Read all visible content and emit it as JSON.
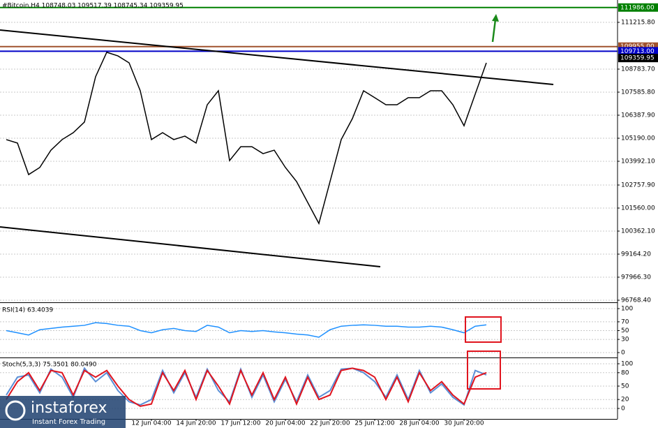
{
  "chart_data": [
    {
      "type": "line",
      "title": "#Bitcoin,H4  108748.03 109517.39 108745.34 109359.95",
      "series": [
        {
          "name": "Bitcoin",
          "color": "#000000",
          "values": [
            105120,
            104940,
            103300,
            103670,
            104570,
            105120,
            105480,
            106030,
            108390,
            109660,
            109470,
            109110,
            107660,
            105120,
            105480,
            105120,
            105300,
            104940,
            106930,
            107660,
            104030,
            104750,
            104750,
            104390,
            104570,
            103670,
            102940,
            101850,
            100760,
            102940,
            105120,
            106210,
            107660,
            107300,
            106930,
            106930,
            107300,
            107300,
            107660,
            107660,
            106930,
            105840,
            107480,
            109110
          ]
        }
      ],
      "ylim": [
        96695.8,
        112377
      ],
      "yticks": [
        {
          "value": 111215.8,
          "label": "111215.80"
        },
        {
          "value": 108783.7,
          "label": "108783.70"
        },
        {
          "value": 107585.8,
          "label": "107585.80"
        },
        {
          "value": 106387.9,
          "label": "106387.90"
        },
        {
          "value": 105190,
          "label": "105190.00"
        },
        {
          "value": 103992.1,
          "label": "103992.10"
        },
        {
          "value": 102757.9,
          "label": "102757.90"
        },
        {
          "value": 101560,
          "label": "101560.00"
        },
        {
          "value": 100362.1,
          "label": "100362.10"
        },
        {
          "value": 99164.2,
          "label": "99164.20"
        },
        {
          "value": 97966.3,
          "label": "97966.30"
        },
        {
          "value": 96768.4,
          "label": "96768.40"
        }
      ],
      "levels": [
        {
          "value": 111986,
          "label": "111986.00",
          "color": "#008000"
        },
        {
          "value": 109955,
          "label": "109955.00",
          "color": "#a0522d"
        },
        {
          "value": 109713,
          "label": "109713.00",
          "color": "#0000c8"
        },
        {
          "value": 109359.95,
          "label": "109359.95",
          "color": "#000000"
        }
      ],
      "grid": true
    },
    {
      "type": "line",
      "title": "RSI(14) 63.4039",
      "series": [
        {
          "name": "RSI",
          "color": "#1e90ff",
          "values": [
            50,
            45,
            40,
            52,
            55,
            58,
            60,
            62,
            68,
            66,
            62,
            60,
            50,
            45,
            52,
            55,
            50,
            48,
            62,
            58,
            45,
            50,
            48,
            50,
            47,
            45,
            42,
            40,
            35,
            52,
            60,
            62,
            63,
            62,
            60,
            60,
            58,
            58,
            60,
            58,
            52,
            45,
            60,
            63
          ]
        }
      ],
      "ylim": [
        -9.5,
        109.5
      ],
      "yticks": [
        100,
        70,
        50,
        30,
        0
      ],
      "grid": true
    },
    {
      "type": "line",
      "title": "Stoch(5,3,3) 75.3501 80.0490",
      "categories": [
        null,
        null,
        null,
        null,
        null,
        null,
        null,
        null,
        null,
        null,
        null,
        null,
        null,
        "12 Jun 04:00",
        null,
        null,
        null,
        "14 Jun 20:00",
        null,
        null,
        null,
        "17 Jun 12:00",
        null,
        null,
        null,
        "20 Jun 04:00",
        null,
        null,
        null,
        "22 Jun 20:00",
        null,
        null,
        null,
        "25 Jun 12:00",
        null,
        null,
        null,
        "28 Jun 04:00",
        null,
        null,
        null,
        "30 Jun 20:00",
        null,
        null
      ],
      "series": [
        {
          "name": "Main",
          "color": "#5b8fd6",
          "values": [
            30,
            70,
            75,
            35,
            88,
            70,
            25,
            90,
            60,
            80,
            40,
            15,
            8,
            20,
            85,
            35,
            80,
            25,
            88,
            40,
            15,
            88,
            25,
            75,
            15,
            65,
            15,
            75,
            25,
            40,
            88,
            90,
            80,
            60,
            25,
            75,
            20,
            85,
            35,
            55,
            25,
            8,
            85,
            75
          ]
        },
        {
          "name": "Signal",
          "color": "#e0141e",
          "values": [
            20,
            60,
            80,
            40,
            85,
            80,
            30,
            85,
            70,
            85,
            50,
            20,
            5,
            10,
            80,
            40,
            85,
            20,
            85,
            50,
            10,
            85,
            30,
            80,
            20,
            70,
            10,
            70,
            20,
            30,
            85,
            90,
            85,
            70,
            20,
            70,
            15,
            80,
            40,
            60,
            30,
            10,
            70,
            80
          ]
        }
      ],
      "ylim": [
        -23.4,
        110.9
      ],
      "yticks": [
        100,
        80,
        50,
        20,
        0
      ],
      "grid": true
    }
  ],
  "watermark": {
    "brand": "instaforex",
    "tagline": "Instant Forex Trading"
  }
}
